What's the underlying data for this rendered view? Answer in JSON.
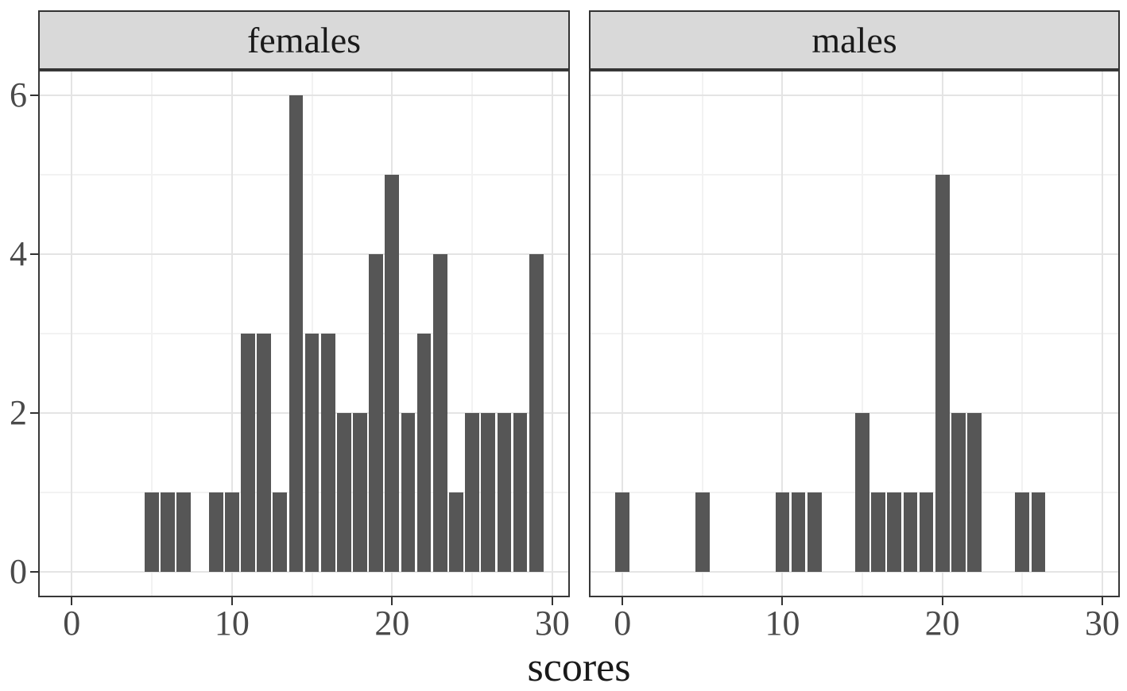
{
  "chart_data": {
    "type": "bar",
    "subtype": "faceted-histogram",
    "title": "",
    "xlabel": "scores",
    "ylabel": "",
    "facets": [
      "females",
      "males"
    ],
    "binwidth": 1,
    "xlim": [
      -2,
      31
    ],
    "ylim": [
      -0.3,
      6.3
    ],
    "x_major_ticks": [
      0,
      10,
      20,
      30
    ],
    "x_minor_ticks": [
      5,
      15,
      25
    ],
    "y_major_ticks": [
      0,
      2,
      4,
      6
    ],
    "y_minor_ticks": [
      1,
      3,
      5
    ],
    "grid": true,
    "legend_position": "none",
    "series": [
      {
        "name": "females",
        "x": [
          5,
          6,
          7,
          9,
          10,
          11,
          12,
          13,
          14,
          15,
          16,
          17,
          18,
          19,
          20,
          21,
          22,
          23,
          24,
          25,
          26,
          27,
          28,
          29
        ],
        "counts": [
          1,
          1,
          1,
          1,
          1,
          3,
          3,
          1,
          6,
          3,
          3,
          2,
          2,
          4,
          5,
          2,
          3,
          4,
          1,
          2,
          2,
          2,
          2,
          4
        ]
      },
      {
        "name": "males",
        "x": [
          0,
          5,
          10,
          11,
          12,
          15,
          16,
          17,
          18,
          19,
          20,
          21,
          22,
          25,
          26
        ],
        "counts": [
          1,
          1,
          1,
          1,
          1,
          2,
          1,
          1,
          1,
          1,
          5,
          2,
          2,
          1,
          1
        ]
      }
    ],
    "colors": {
      "bar_fill": "#565656",
      "strip_background": "#d9d9d9",
      "strip_border": "#333333",
      "panel_border": "#383838",
      "grid_major": "#e4e4e4",
      "grid_minor": "#f2f2f2",
      "tick_mark": "#333333",
      "axis_text": "#4a4a4a",
      "strip_text": "#1a1a1a",
      "axis_title_text": "#1a1a1a",
      "panel_background": "#ffffff"
    }
  }
}
